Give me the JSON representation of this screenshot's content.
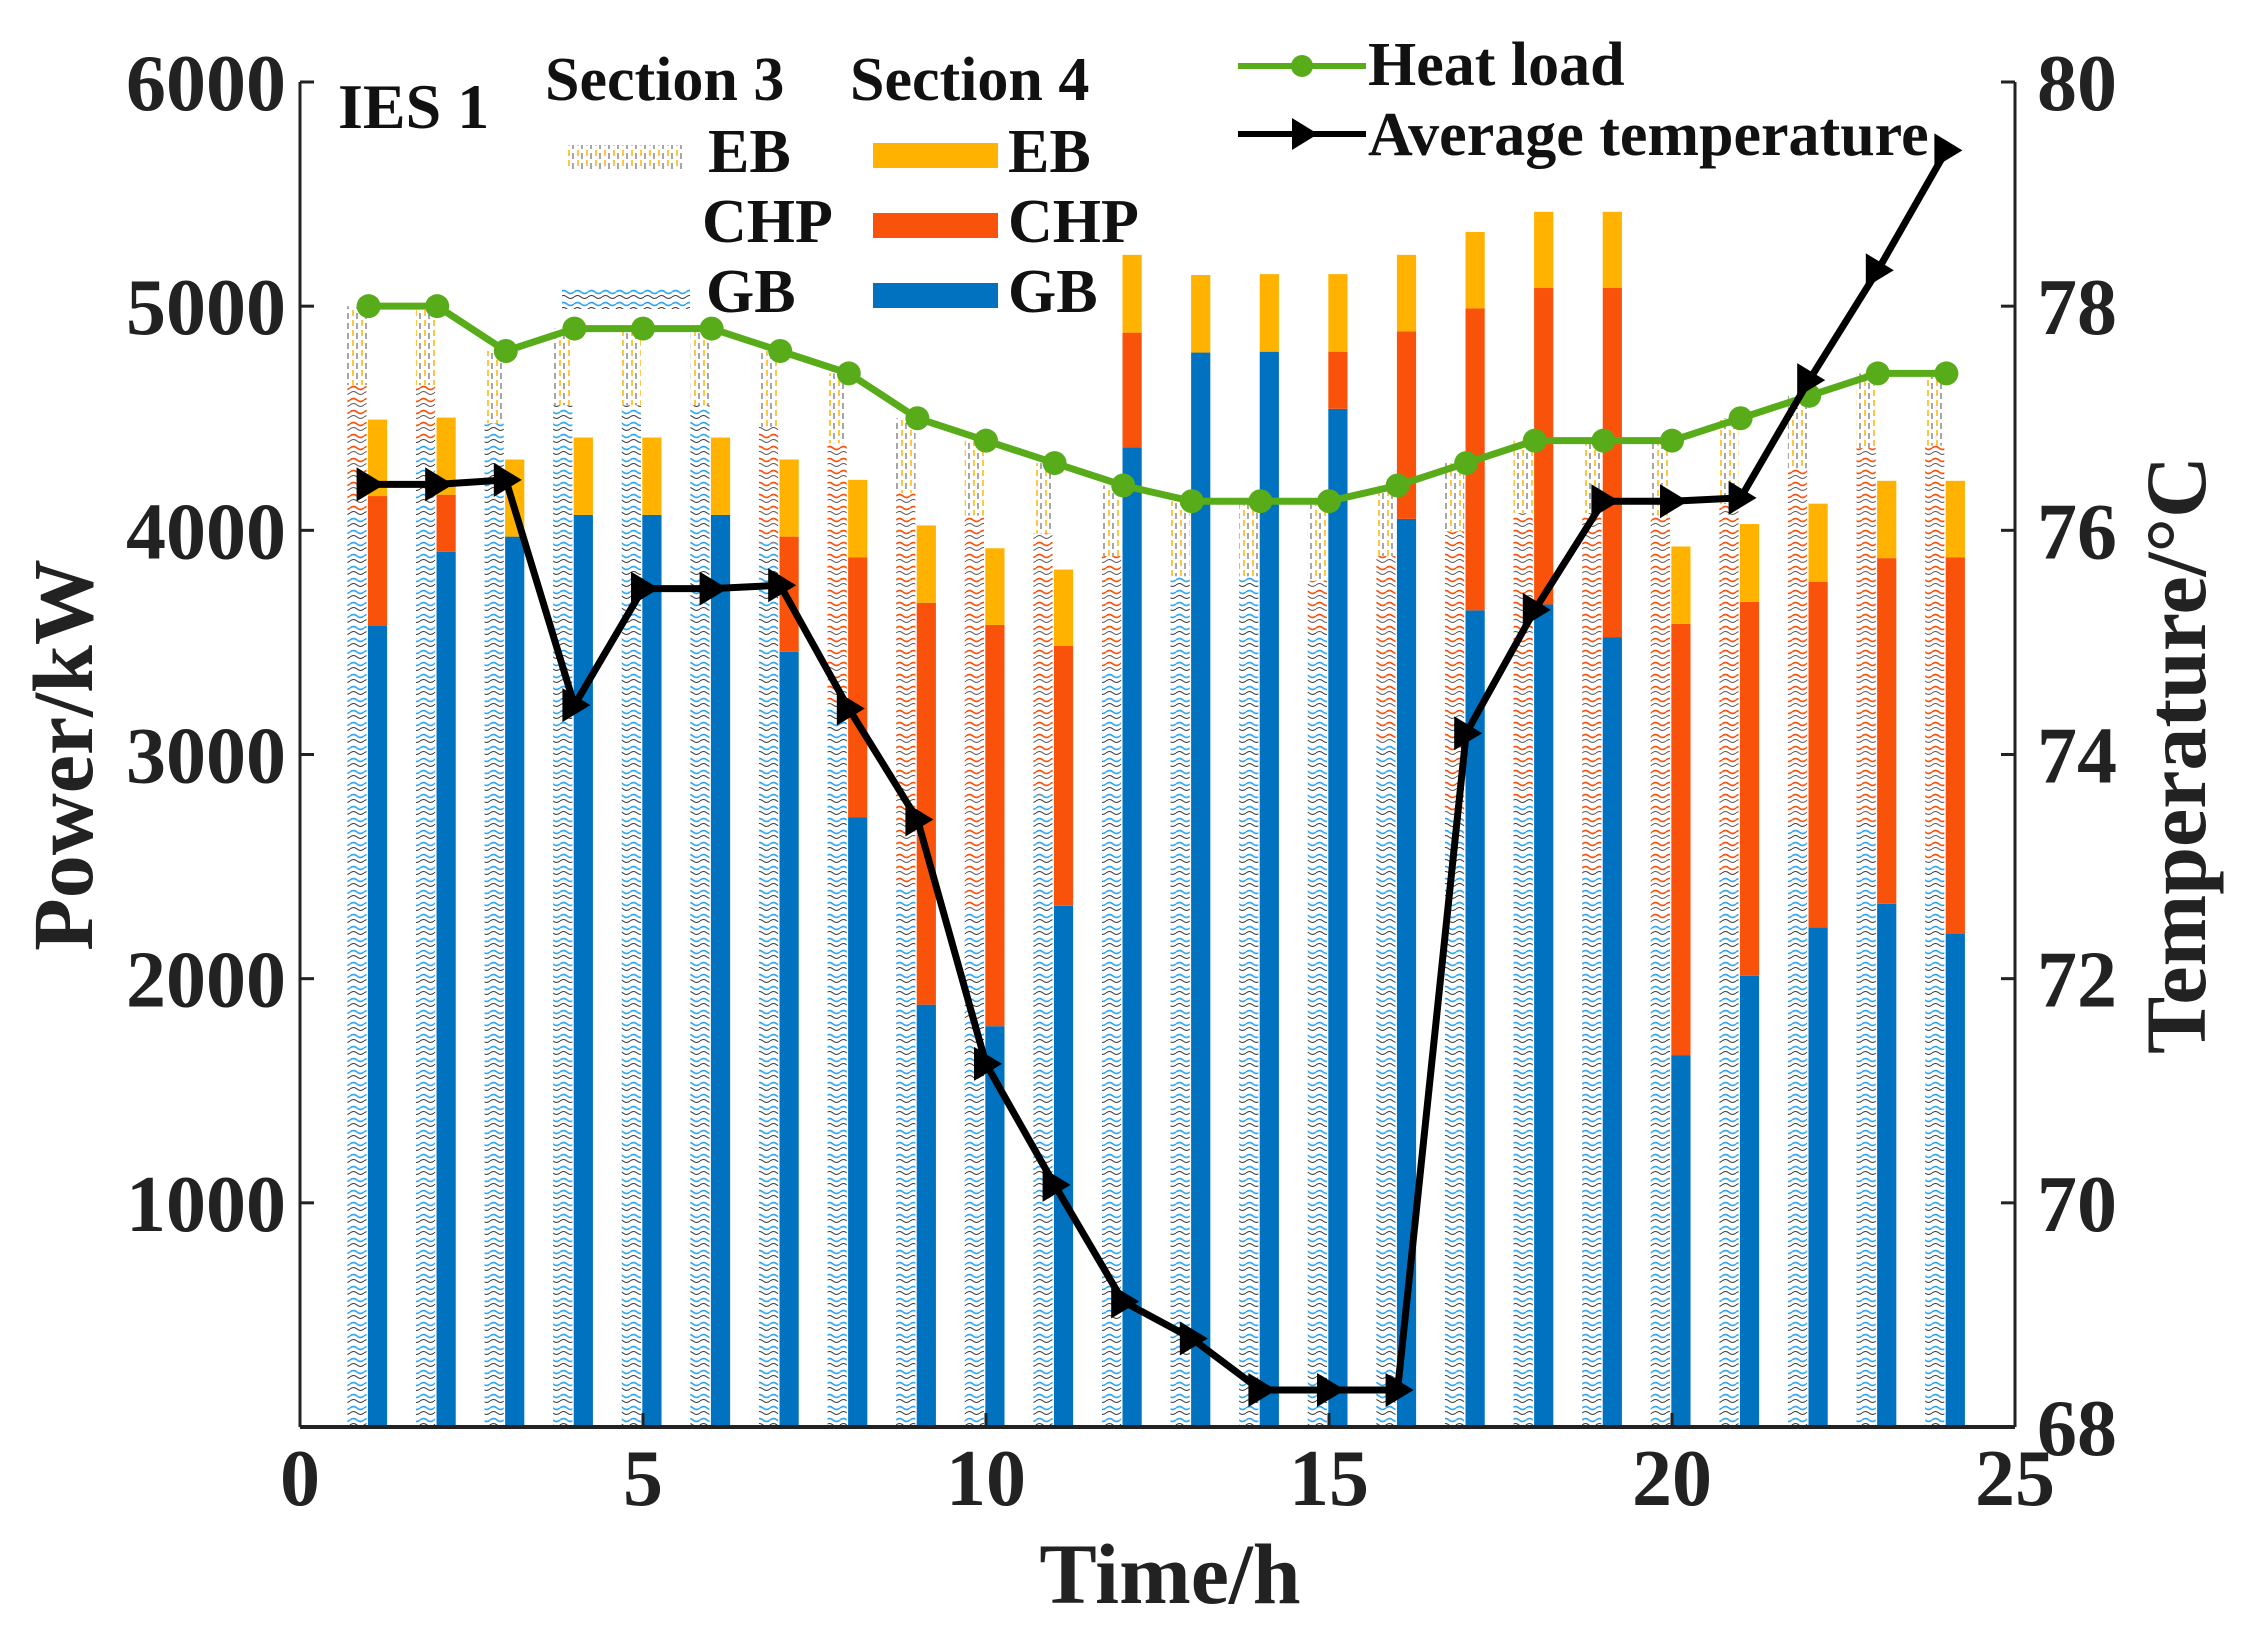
{
  "chart_data": {
    "type": "bar",
    "subtype": "grouped stacked bar with dual-axis lines",
    "title": "IES 1",
    "xlabel": "Time/h",
    "ylabel": "Power/kW",
    "y2label": "Temperature/°C",
    "xlim": [
      0,
      25
    ],
    "ylim": [
      0,
      6000
    ],
    "y2lim": [
      68,
      80
    ],
    "xticks": [
      "0",
      "5",
      "10",
      "15",
      "20",
      "25"
    ],
    "yticks": [
      "1000",
      "2000",
      "3000",
      "4000",
      "5000",
      "6000"
    ],
    "y2ticks": [
      "68",
      "70",
      "72",
      "74",
      "76",
      "78",
      "80"
    ],
    "x": [
      1,
      2,
      3,
      4,
      5,
      6,
      7,
      8,
      9,
      10,
      11,
      12,
      13,
      14,
      15,
      16,
      17,
      18,
      19,
      20,
      21,
      22,
      23,
      24
    ],
    "legend": {
      "section3_title": "Section 3",
      "section4_title": "Section 4",
      "eb": "EB",
      "chp": "CHP",
      "gb": "GB",
      "heat_load": "Heat load",
      "avg_temp": "Average temperature",
      "placement": "top"
    },
    "section3": {
      "GB": [
        4087,
        4407,
        4478,
        4558,
        4558,
        4558,
        3946,
        3223,
        2420,
        2300,
        2822,
        3364,
        3795,
        3795,
        3545,
        3042,
        2721,
        2801,
        2480,
        2239,
        2480,
        2701,
        2701,
        2520
      ],
      "CHP": [
        561,
        241,
        0,
        0,
        0,
        0,
        516,
        1165,
        1747,
        1766,
        1164,
        522,
        0,
        0,
        230,
        844,
        1275,
        1276,
        1597,
        1827,
        1637,
        1576,
        1666,
        1858
      ],
      "EB": [
        352,
        352,
        322,
        342,
        342,
        342,
        338,
        312,
        333,
        334,
        314,
        314,
        335,
        335,
        355,
        314,
        304,
        323,
        323,
        334,
        383,
        323,
        333,
        322
      ]
    },
    "section4": {
      "GB": [
        3575,
        3904,
        3972,
        4069,
        4069,
        4069,
        3458,
        2719,
        1884,
        1788,
        2325,
        4370,
        4793,
        4797,
        4542,
        4051,
        3643,
        3669,
        3522,
        1659,
        2013,
        2229,
        2334,
        2201
      ],
      "CHP": [
        578,
        255,
        0,
        0,
        0,
        0,
        514,
        1161,
        1793,
        1790,
        1159,
        512,
        0,
        0,
        255,
        837,
        1347,
        1412,
        1559,
        1924,
        1668,
        1542,
        1542,
        1679
      ],
      "EB": [
        341,
        344,
        344,
        345,
        345,
        345,
        344,
        345,
        345,
        342,
        341,
        347,
        346,
        346,
        346,
        341,
        341,
        340,
        340,
        345,
        347,
        348,
        345,
        341
      ]
    },
    "heat_load": [
      5000,
      5000,
      4800,
      4900,
      4900,
      4900,
      4800,
      4700,
      4500,
      4400,
      4300,
      4200,
      4130,
      4130,
      4130,
      4200,
      4300,
      4400,
      4400,
      4400,
      4500,
      4600,
      4700,
      4700
    ],
    "avg_temperature": [
      76.41,
      76.41,
      76.45,
      74.44,
      75.48,
      75.48,
      75.51,
      74.41,
      73.42,
      71.24,
      70.16,
      69.12,
      68.79,
      68.33,
      68.33,
      68.33,
      74.19,
      75.29,
      76.26,
      76.26,
      76.29,
      77.34,
      78.32,
      79.39
    ],
    "colors": {
      "EB": "#FFB300",
      "CHP": "#F9530B",
      "GB": "#0072C0",
      "GB_hatch": "#33A8F0",
      "heat_load": "#58AC1A",
      "avg_temp": "#000000"
    }
  }
}
